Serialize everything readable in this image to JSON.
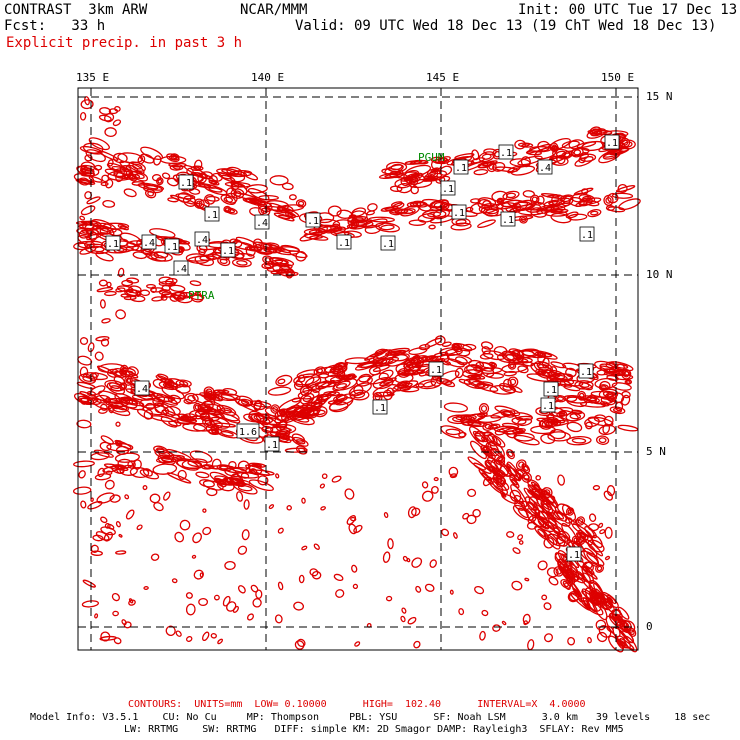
{
  "header": {
    "title": "CONTRAST  3km ARW",
    "center": "NCAR/MMM",
    "init": "Init: 00 UTC Tue 17 Dec 13",
    "fcst": "Fcst:   33 h",
    "valid": "Valid: 09 UTC Wed 18 Dec 13 (19 ChT Wed 18 Dec 13)",
    "field": "Explicit precip. in past 3 h"
  },
  "map": {
    "lon_ticks": [
      "135 E",
      "140 E",
      "145 E",
      "150 E"
    ],
    "lat_ticks": [
      "15 N",
      "10 N",
      "5 N",
      "0"
    ],
    "stations": [
      "PGUM",
      "PTRA"
    ],
    "contour_color": "#dd0000",
    "grid_style": "dashed",
    "contour_labels": [
      ".1",
      ".1",
      ".4",
      ".1",
      ".1",
      ".1",
      ".1",
      ".4",
      ".1",
      ".1",
      ".1",
      ".1",
      ".4",
      ".1",
      ".4",
      ".1",
      ".1",
      ".1",
      ".1",
      ".4",
      ".1",
      ".1",
      ".4",
      ".1",
      ".1",
      ".1",
      "1.6",
      ".1",
      ".1"
    ]
  },
  "footer": {
    "contours": "CONTOURS:  UNITS=mm  LOW= 0.10000      HIGH=  102.40      INTERVAL=X  4.0000",
    "model_line1": "Model Info: V3.5.1    CU: No Cu     MP: Thompson     PBL: YSU      SF: Noah LSM      3.0 km   39 levels    18 sec",
    "model_line2": "LW: RRTMG    SW: RRTMG   DIFF: simple KM: 2D Smagor DAMP: Rayleigh3  SFLAY: Rev MM5"
  }
}
